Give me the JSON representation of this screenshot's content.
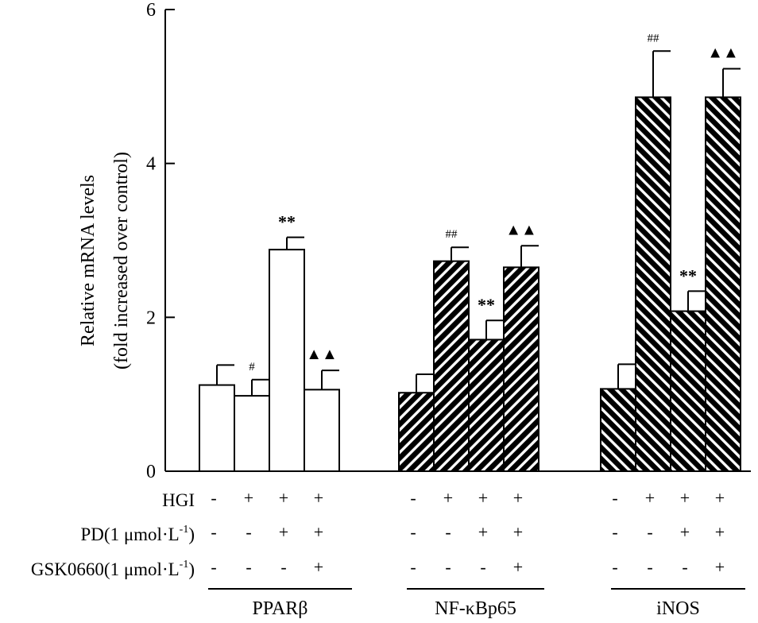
{
  "chart_data": {
    "type": "bar",
    "ylabel_line1": "Relative mRNA levels",
    "ylabel_line2": "(fold increased over control)",
    "ylim": [
      0,
      6
    ],
    "yticks": [
      "0",
      "2",
      "4",
      "6"
    ],
    "groups": [
      {
        "name": "PPARβ",
        "fill": "white",
        "bars": [
          {
            "value": 1.12,
            "error": 0.26,
            "sig": ""
          },
          {
            "value": 0.98,
            "error": 0.21,
            "sig": "#"
          },
          {
            "value": 2.88,
            "error": 0.16,
            "sig": "**"
          },
          {
            "value": 1.06,
            "error": 0.25,
            "sig": "▲▲"
          }
        ]
      },
      {
        "name": "NF-κBp65",
        "fill": "hatch-back",
        "bars": [
          {
            "value": 1.02,
            "error": 0.24,
            "sig": ""
          },
          {
            "value": 2.73,
            "error": 0.18,
            "sig": "##"
          },
          {
            "value": 1.71,
            "error": 0.25,
            "sig": "**"
          },
          {
            "value": 2.65,
            "error": 0.28,
            "sig": "▲▲"
          }
        ]
      },
      {
        "name": "iNOS",
        "fill": "hatch-forward",
        "bars": [
          {
            "value": 1.07,
            "error": 0.32,
            "sig": ""
          },
          {
            "value": 4.86,
            "error": 0.6,
            "sig": "##"
          },
          {
            "value": 2.08,
            "error": 0.26,
            "sig": "**"
          },
          {
            "value": 4.86,
            "error": 0.37,
            "sig": "▲▲"
          }
        ]
      }
    ],
    "conditions": [
      {
        "label": "HGI",
        "signs": [
          "-",
          "+",
          "+",
          "+"
        ]
      },
      {
        "label": "PD(1 μmol·L",
        "superscript": "-1",
        "suffix": ")",
        "signs": [
          "-",
          "-",
          "+",
          "+"
        ]
      },
      {
        "label": "GSK0660(1 μmol·L",
        "superscript": "-1",
        "suffix": ")",
        "signs": [
          "-",
          "-",
          "-",
          "+"
        ]
      }
    ]
  }
}
